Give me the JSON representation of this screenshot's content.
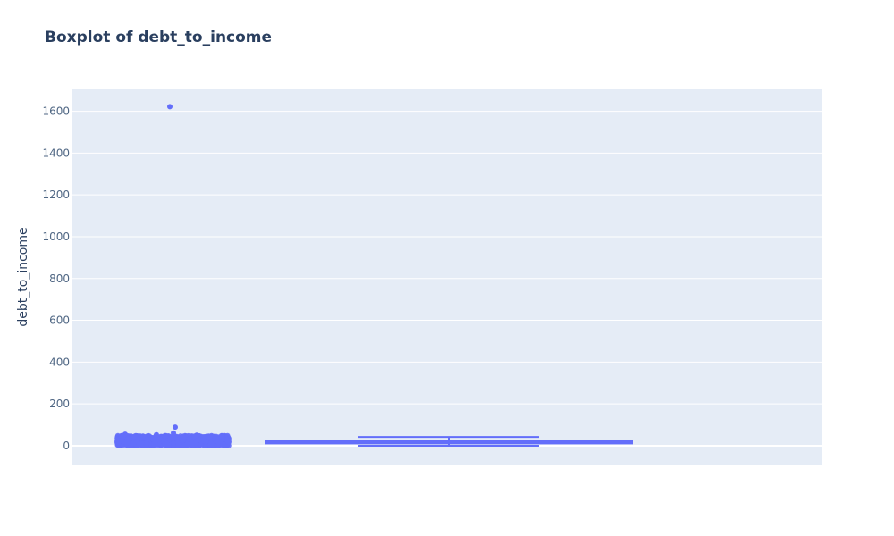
{
  "chart_data": {
    "type": "box",
    "title": "Boxplot of debt_to_income",
    "xlabel": "",
    "ylabel": "debt_to_income",
    "ylim": [
      -90,
      1705
    ],
    "yticks": [
      0,
      200,
      400,
      600,
      800,
      1000,
      1200,
      1400,
      1600
    ],
    "grid": true,
    "legend": "none",
    "box": {
      "q1": 11,
      "median": 17,
      "q3": 25,
      "lower_fence": 0,
      "upper_fence": 42,
      "mean": 18,
      "outliers": [
        1622,
        89,
        61,
        55,
        52,
        50,
        48,
        46,
        45,
        44,
        43
      ]
    }
  },
  "colors": {
    "plot_bg": "#e5ecf6",
    "grid": "#ffffff",
    "box": "#636efa",
    "text": "#2a3f5f",
    "tick_text": "#506784"
  }
}
